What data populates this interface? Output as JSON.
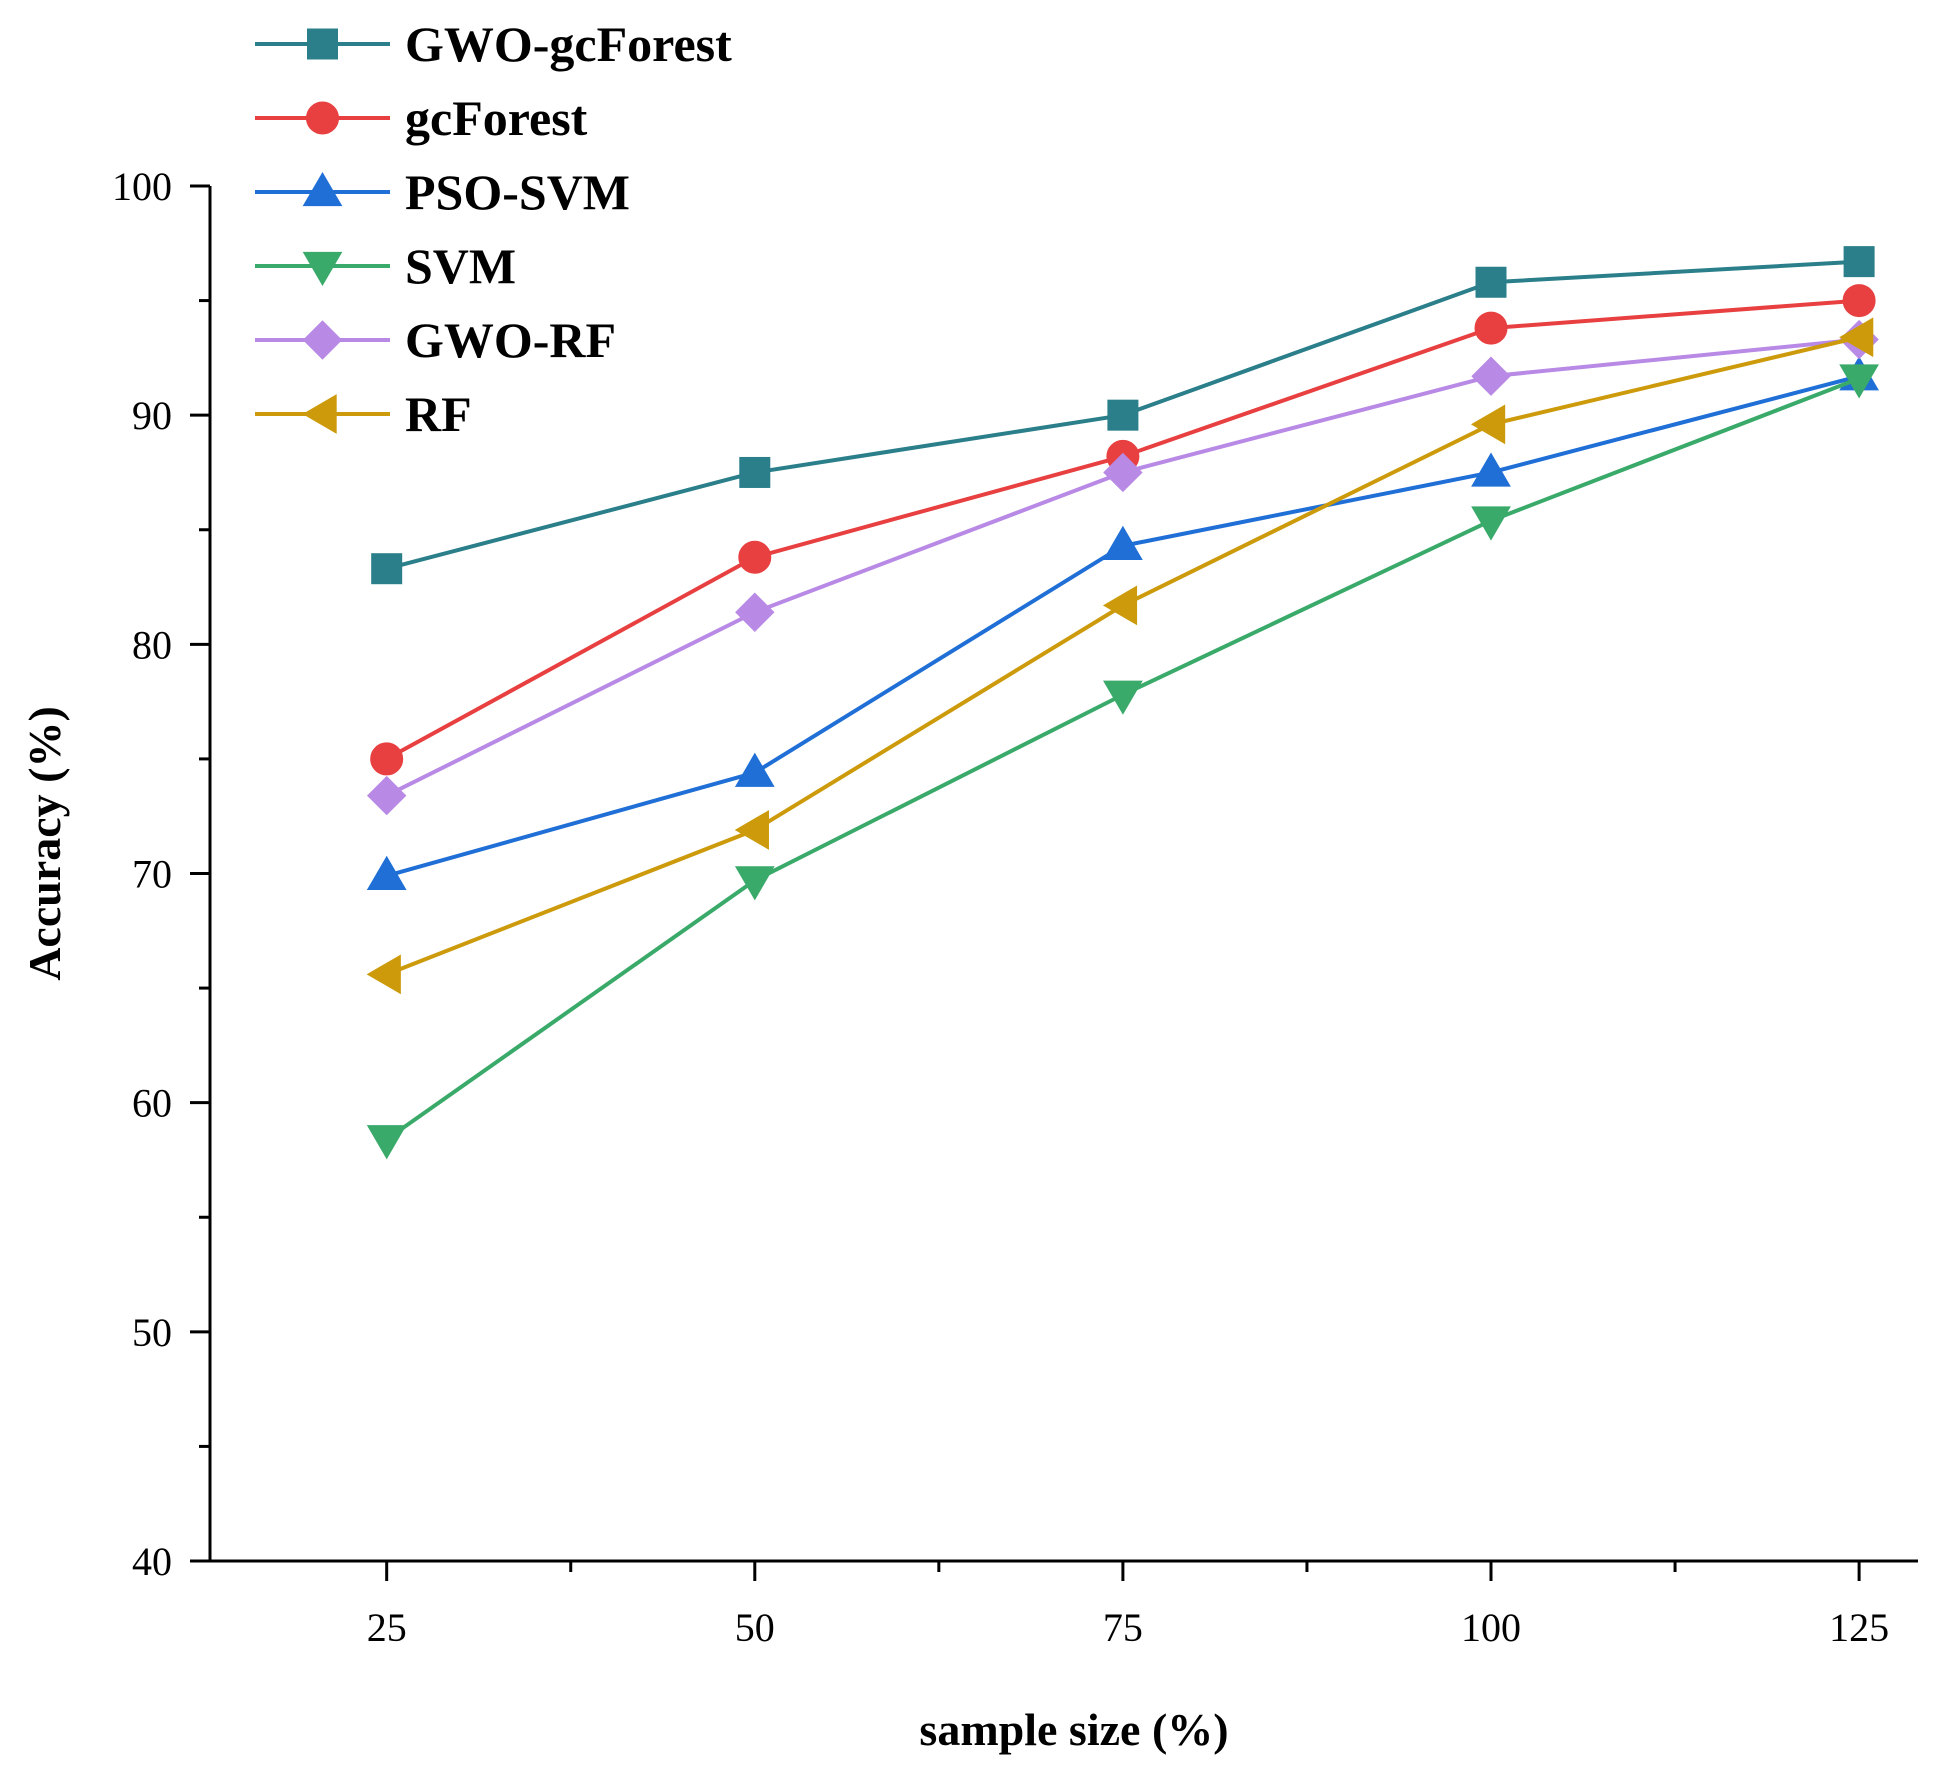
{
  "chart_data": {
    "type": "line",
    "title": "",
    "xlabel": "sample size (%)",
    "ylabel": "Accuracy (%)",
    "x": [
      25,
      50,
      75,
      100,
      125
    ],
    "xticks": [
      "25",
      "50",
      "75",
      "100",
      "125"
    ],
    "yticks": [
      "40",
      "50",
      "60",
      "70",
      "80",
      "90",
      "100"
    ],
    "xlim": [
      13,
      129
    ],
    "ylim": [
      40,
      100
    ],
    "grid": false,
    "legend_position": "top-left",
    "series": [
      {
        "name": "GWO-gcForest",
        "marker": "square",
        "color": "#2a7f8a",
        "values": [
          83.3,
          87.5,
          90.0,
          95.8,
          96.7
        ]
      },
      {
        "name": "gcForest",
        "marker": "circle",
        "color": "#e84040",
        "values": [
          75.0,
          83.8,
          88.2,
          93.8,
          95.0
        ]
      },
      {
        "name": "PSO-SVM",
        "marker": "triangle-up",
        "color": "#1f6fd6",
        "values": [
          69.9,
          74.4,
          84.3,
          87.5,
          91.7
        ]
      },
      {
        "name": "SVM",
        "marker": "triangle-down",
        "color": "#3aaa6a",
        "values": [
          58.4,
          69.7,
          77.8,
          85.4,
          91.6
        ]
      },
      {
        "name": "GWO-RF",
        "marker": "diamond",
        "color": "#b88ae6",
        "values": [
          73.4,
          81.4,
          87.5,
          91.7,
          93.3
        ]
      },
      {
        "name": "RF",
        "marker": "triangle-left",
        "color": "#cc9a0a",
        "values": [
          65.6,
          71.9,
          81.7,
          89.6,
          93.4
        ]
      }
    ]
  }
}
